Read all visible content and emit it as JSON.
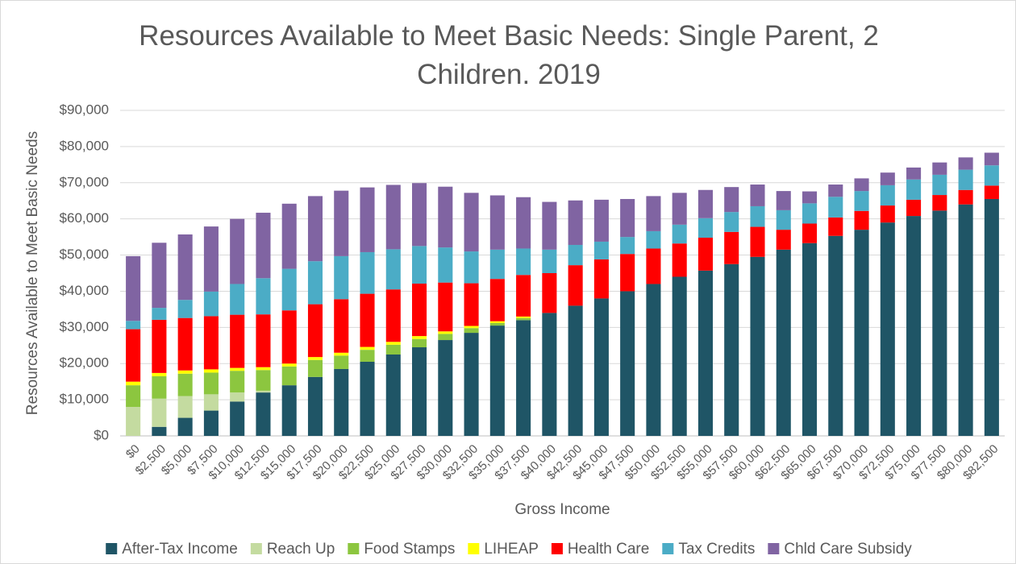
{
  "chart_data": {
    "type": "stacked_bar",
    "title": "Resources Available to Meet Basic Needs: Single Parent, 2 Children. 2019",
    "x_label": "Gross Income",
    "y_label": "Resources Available to Meet Basic Needs",
    "categories": [
      "$0",
      "$2,500",
      "$5,000",
      "$7,500",
      "$10,000",
      "$12,500",
      "$15,000",
      "$17,500",
      "$20,000",
      "$22,500",
      "$25,000",
      "$27,500",
      "$30,000",
      "$32,500",
      "$35,000",
      "$37,500",
      "$40,000",
      "$42,500",
      "$45,000",
      "$47,500",
      "$50,000",
      "$52,500",
      "$55,000",
      "$57,500",
      "$60,000",
      "$62,500",
      "$65,000",
      "$67,500",
      "$70,000",
      "$72,500",
      "$75,000",
      "$77,500",
      "$80,000",
      "$82,500"
    ],
    "series": [
      {
        "name": "After-Tax Income",
        "color": "#1f5566",
        "values": [
          0,
          2500,
          5000,
          7000,
          9500,
          12000,
          14000,
          16300,
          18500,
          20500,
          22500,
          24500,
          26500,
          28500,
          30500,
          32000,
          34000,
          36000,
          38000,
          40000,
          42000,
          44000,
          45700,
          47500,
          49500,
          51500,
          53300,
          55300,
          57000,
          59000,
          60800,
          62300,
          64000,
          65500
        ]
      },
      {
        "name": "Reach Up",
        "color": "#c4dba0",
        "values": [
          8000,
          7800,
          6000,
          4500,
          2500,
          500,
          0,
          0,
          0,
          0,
          0,
          0,
          0,
          0,
          0,
          0,
          0,
          0,
          0,
          0,
          0,
          0,
          0,
          0,
          0,
          0,
          0,
          0,
          0,
          0,
          0,
          0,
          0,
          0
        ]
      },
      {
        "name": "Food Stamps",
        "color": "#8cc63f",
        "values": [
          6000,
          6200,
          6200,
          6000,
          6000,
          5700,
          5200,
          4700,
          3700,
          3300,
          2700,
          2300,
          1700,
          1300,
          700,
          600,
          0,
          0,
          0,
          0,
          0,
          0,
          0,
          0,
          0,
          0,
          0,
          0,
          0,
          0,
          0,
          0,
          0,
          0
        ]
      },
      {
        "name": "LIHEAP",
        "color": "#ffff00",
        "values": [
          1000,
          900,
          900,
          900,
          800,
          800,
          800,
          800,
          800,
          800,
          800,
          800,
          700,
          600,
          500,
          400,
          0,
          0,
          0,
          0,
          0,
          0,
          0,
          0,
          0,
          0,
          0,
          0,
          0,
          0,
          0,
          0,
          0,
          0
        ]
      },
      {
        "name": "Health Care",
        "color": "#ff0000",
        "values": [
          14500,
          14700,
          14500,
          14700,
          14700,
          14600,
          14700,
          14600,
          14800,
          14700,
          14500,
          14500,
          13500,
          11800,
          11700,
          11500,
          11000,
          11200,
          10800,
          10300,
          9800,
          9200,
          9100,
          8900,
          8300,
          5500,
          5400,
          5100,
          5200,
          4700,
          4500,
          4300,
          4000,
          3700
        ]
      },
      {
        "name": "Tax Credits",
        "color": "#4bacc6",
        "values": [
          2300,
          3300,
          5000,
          6800,
          8500,
          10000,
          11500,
          11900,
          11900,
          11500,
          11100,
          10400,
          9700,
          8800,
          8100,
          7300,
          6500,
          5600,
          4900,
          4700,
          4800,
          5200,
          5400,
          5500,
          5700,
          5400,
          5600,
          5700,
          5500,
          5600,
          5600,
          5600,
          5600,
          5600
        ]
      },
      {
        "name": "Chld Care Subsidy",
        "color": "#8064a2",
        "values": [
          17900,
          18000,
          18100,
          18000,
          18000,
          18100,
          18000,
          18000,
          18100,
          17900,
          17800,
          17400,
          16800,
          16200,
          15000,
          14200,
          13200,
          12300,
          11600,
          10500,
          9700,
          8800,
          7800,
          6900,
          6000,
          5300,
          3300,
          3400,
          3500,
          3500,
          3300,
          3400,
          3400,
          3500
        ]
      }
    ],
    "ylim": [
      0,
      90000
    ],
    "yticks": [
      {
        "value": 0,
        "label": "$0"
      },
      {
        "value": 10000,
        "label": "$10,000"
      },
      {
        "value": 20000,
        "label": "$20,000"
      },
      {
        "value": 30000,
        "label": "$30,000"
      },
      {
        "value": 40000,
        "label": "$40,000"
      },
      {
        "value": 50000,
        "label": "$50,000"
      },
      {
        "value": 60000,
        "label": "$60,000"
      },
      {
        "value": 70000,
        "label": "$70,000"
      },
      {
        "value": 80000,
        "label": "$80,000"
      },
      {
        "value": 90000,
        "label": "$90,000"
      }
    ],
    "grid": true,
    "legend": "bottom"
  }
}
